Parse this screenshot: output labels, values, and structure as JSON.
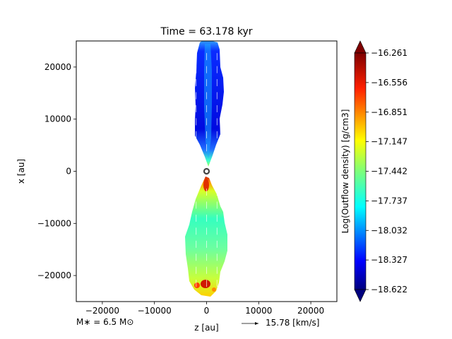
{
  "chart_data": {
    "type": "heatmap",
    "title": "Time = 63.178 kyr",
    "xlabel": "z [au]",
    "ylabel": "x [au]",
    "xlim": [
      -25000,
      25000
    ],
    "ylim": [
      -25000,
      25000
    ],
    "xticks": [
      -20000,
      -10000,
      0,
      10000,
      20000
    ],
    "yticks": [
      -20000,
      -10000,
      0,
      10000,
      20000
    ],
    "grid": false,
    "colorbar": {
      "label": "Log(Outflow density) [g/cm3]",
      "min": -18.622,
      "max": -16.261,
      "extend": "both",
      "colormap": "jet",
      "ticks": [
        "-16.261",
        "-16.556",
        "-16.851",
        "-17.147",
        "-17.442",
        "-17.737",
        "-18.032",
        "-18.327",
        "-18.622"
      ]
    },
    "annotations": {
      "mass_label": "M∗ = 6.5 M⊙",
      "velocity_key": "15.78 [km/s]"
    },
    "regions": [
      {
        "lobe": "upper",
        "z_range": [
          -3000,
          3500
        ],
        "x_range": [
          2000,
          25000
        ],
        "log_density_typical": -18.5,
        "log_density_tip": -17.9,
        "log_density_base": -17.7
      },
      {
        "lobe": "lower",
        "z_range": [
          -4000,
          4000
        ],
        "x_range": [
          -24000,
          -1500
        ],
        "log_density_typical": -17.6,
        "log_density_base": -16.4,
        "log_density_knots": -16.3
      }
    ],
    "source_marker": {
      "z": 0,
      "x": 0
    }
  }
}
